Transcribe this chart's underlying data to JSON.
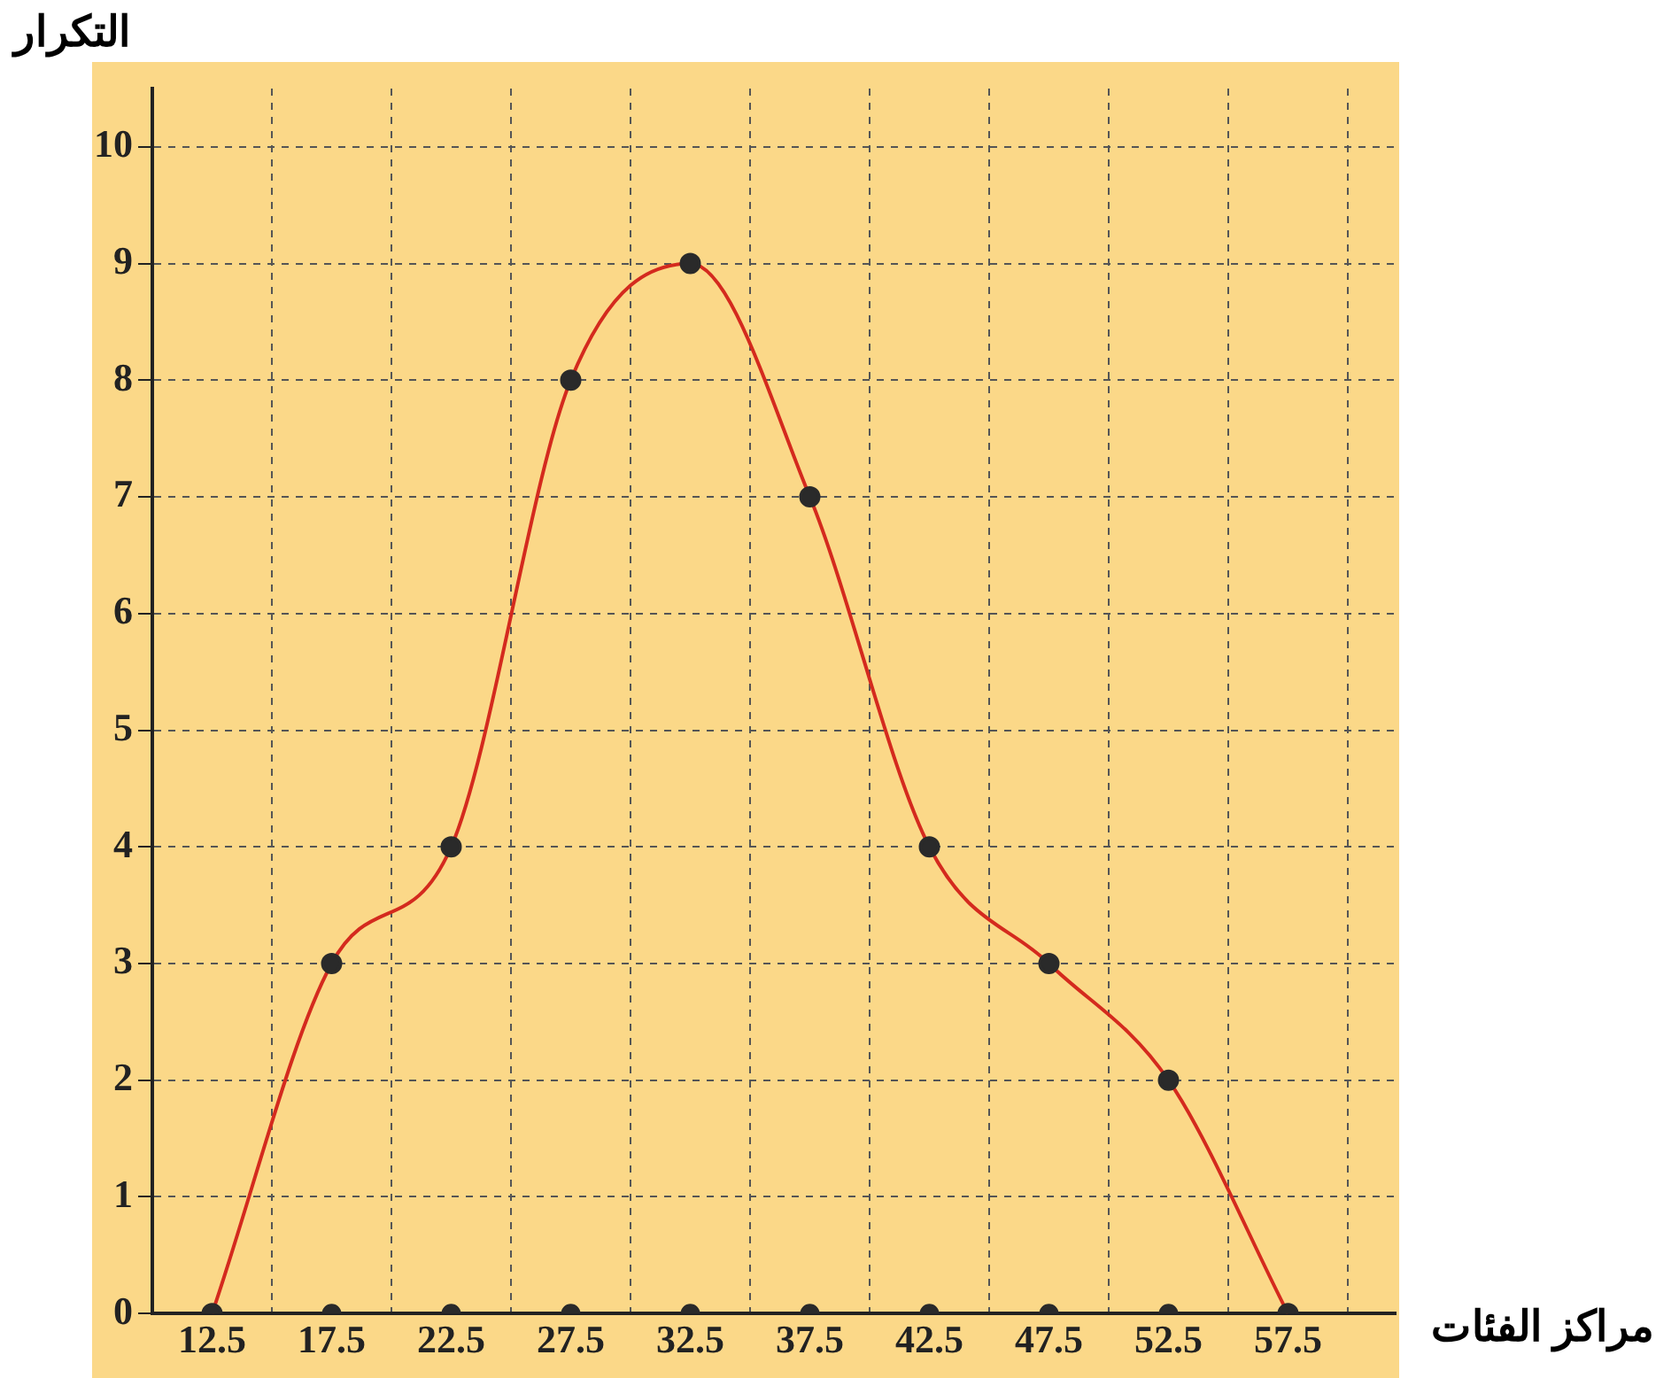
{
  "chart_data": {
    "type": "line",
    "xlabel": "مراكز الفئات",
    "ylabel": "التكرار",
    "x": [
      12.5,
      17.5,
      22.5,
      27.5,
      32.5,
      37.5,
      42.5,
      47.5,
      52.5,
      57.5
    ],
    "series": [
      {
        "color": "#d42a1e",
        "values": [
          0,
          3,
          4,
          8,
          9,
          7,
          4,
          3,
          2,
          0
        ]
      },
      {
        "type": "scatter",
        "color": "#2a2a2a",
        "values": [
          null,
          0,
          0,
          0,
          0,
          0,
          0,
          0,
          0,
          null
        ]
      }
    ],
    "marker": "circle",
    "xlim": [
      10,
      62
    ],
    "xticks": [
      12.5,
      {
        "value": 15,
        "label": null
      },
      17.5,
      {
        "value": 20,
        "label": null
      },
      22.5,
      {
        "value": 25,
        "label": null
      },
      27.5,
      {
        "value": 30,
        "label": null
      },
      32.5,
      {
        "value": 35,
        "label": null
      },
      37.5,
      {
        "value": 40,
        "label": null
      },
      42.5,
      {
        "value": 45,
        "label": null
      },
      47.5,
      {
        "value": 50,
        "label": null
      },
      52.5,
      {
        "value": 55,
        "label": null
      },
      57.5,
      {
        "value": 60,
        "label": null
      }
    ],
    "ylim": [
      0,
      10.5
    ],
    "yticks": [
      0,
      1,
      2,
      3,
      4,
      5,
      6,
      7,
      8,
      9,
      10
    ],
    "grid": true,
    "legend": false
  }
}
